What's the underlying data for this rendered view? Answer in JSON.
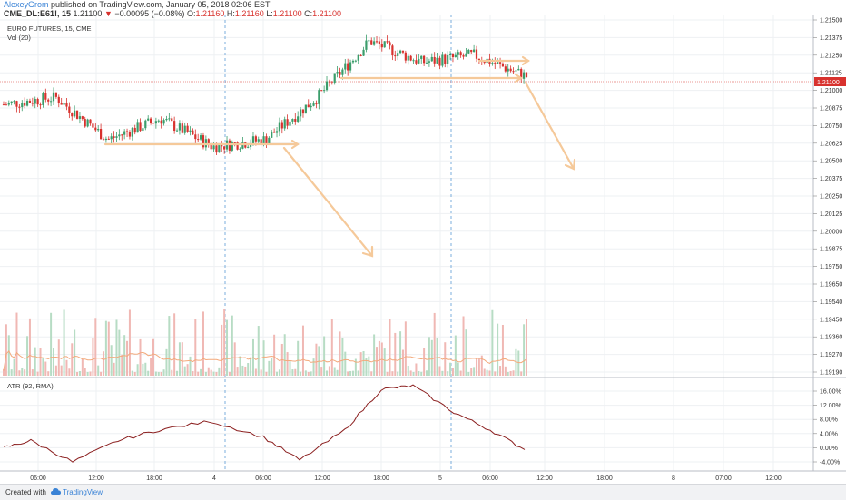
{
  "header": {
    "author": "AlexeyGrom",
    "published_text": "published on TradingView.com, January 05, 2018 02:06 EST",
    "symbol": "CME_DL:E61!, 15",
    "last": "1.21100",
    "arrow": "▼",
    "change": "−0.00095 (−0.08%)",
    "o_label": "O:",
    "o_value": "1.21160",
    "h_label": "H:",
    "h_value": "1.21160",
    "l_label": "L:",
    "l_value": "1.21100",
    "c_label": "C:",
    "c_value": "1.21100"
  },
  "footer": {
    "created_with": "Created with",
    "brand": "TradingView"
  },
  "colors": {
    "up": "#3a9d6b",
    "down": "#d8322e",
    "annotation": "#f5c99a",
    "atr": "#8b1f1f",
    "vol_up": "#b7dcc4",
    "vol_down": "#f0b8b4",
    "vol_ma": "#f3a97b",
    "session": "#5b9bd5"
  },
  "chart_data": [
    {
      "type": "candlestick",
      "title": "EURO FUTURES, 15, CME",
      "indicator_label": "Vol (20)",
      "price_axis_ticks": [
        "1.21500",
        "1.21375",
        "1.21250",
        "1.21125",
        "1.21000",
        "1.20875",
        "1.20750",
        "1.20625",
        "1.20500",
        "1.20375",
        "1.20250",
        "1.20125",
        "1.20000",
        "1.19875",
        "1.19750",
        "1.19650",
        "1.19540",
        "1.19450",
        "1.19360",
        "1.19270",
        "1.19190"
      ],
      "last_price_label": "1.21100",
      "x_tick_labels": [
        "06:00",
        "12:00",
        "18:00",
        "4",
        "06:00",
        "12:00",
        "18:00",
        "5",
        "06:00",
        "12:00",
        "18:00",
        "8",
        "07:00",
        "12:00"
      ],
      "grid": true,
      "ohlc_approx": [
        {
          "t": "start",
          "price": 1.209
        },
        {
          "t": "06:00",
          "price": 1.2095
        },
        {
          "t": "12:00",
          "price": 1.2065
        },
        {
          "t": "18:00",
          "price": 1.208
        },
        {
          "t": "4",
          "price": 1.206
        },
        {
          "t": "06:00",
          "price": 1.2065
        },
        {
          "t": "12:00",
          "price": 1.2095
        },
        {
          "t": "18:00",
          "price": 1.2135
        },
        {
          "t": "5",
          "price": 1.212
        },
        {
          "t": "06:00",
          "price": 1.2125
        },
        {
          "t": "end",
          "price": 1.211
        }
      ]
    },
    {
      "type": "line",
      "title": "ATR (92, RMA)",
      "y_axis_ticks": [
        "16.00%",
        "12.00%",
        "8.00%",
        "4.00%",
        "0.00%",
        "-4.00%"
      ],
      "grid": true
    }
  ]
}
